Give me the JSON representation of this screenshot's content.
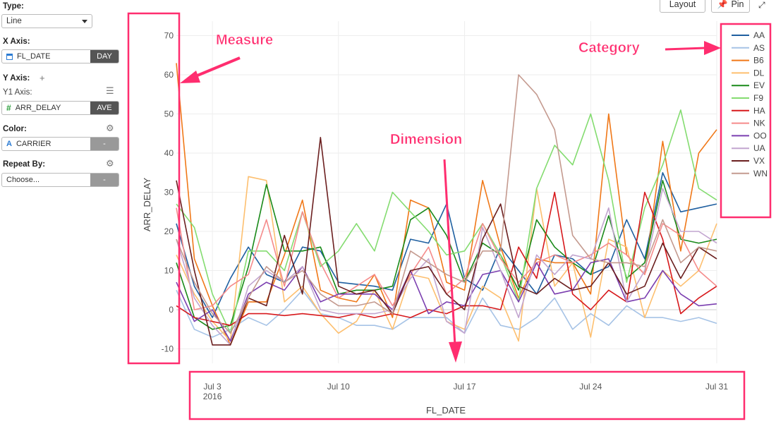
{
  "panel": {
    "type_label": "Type:",
    "type_value": "Line",
    "xaxis_label": "X Axis:",
    "xaxis_field": "FL_DATE",
    "xaxis_agg": "DAY",
    "yaxis_label": "Y Axis:",
    "y1_label": "Y1 Axis:",
    "yaxis_field": "ARR_DELAY",
    "yaxis_agg": "AVE",
    "color_label": "Color:",
    "color_field": "CARRIER",
    "color_agg": "-",
    "repeat_label": "Repeat By:",
    "repeat_placeholder": "Choose...",
    "repeat_agg": "-",
    "icons": [
      "calendar-icon",
      "hash-icon",
      "text-type-icon",
      "plus-icon",
      "menu-icon",
      "gear-icon",
      "caret-down-icon"
    ]
  },
  "toolbar": {
    "layout_label": "Layout",
    "pin_label": "Pin",
    "icons": [
      "pin-icon",
      "expand-icon"
    ]
  },
  "annotations": {
    "measure": "Measure",
    "dimension": "Dimension",
    "category": "Category",
    "color": "#ff2d6f"
  },
  "chart_data": {
    "type": "line",
    "xlabel": "FL_DATE",
    "ylabel": "ARR_DELAY",
    "ylim": [
      -15,
      75
    ],
    "yticks": [
      -10,
      0,
      10,
      20,
      30,
      40,
      50,
      60,
      70
    ],
    "x_tick_labels": [
      {
        "day": 3,
        "label": "Jul 3",
        "sub": "2016"
      },
      {
        "day": 10,
        "label": "Jul 10",
        "sub": ""
      },
      {
        "day": 17,
        "label": "Jul 17",
        "sub": ""
      },
      {
        "day": 24,
        "label": "Jul 24",
        "sub": ""
      },
      {
        "day": 31,
        "label": "Jul 31",
        "sub": ""
      }
    ],
    "x": [
      "2016-07-01",
      "2016-07-02",
      "2016-07-03",
      "2016-07-04",
      "2016-07-05",
      "2016-07-06",
      "2016-07-07",
      "2016-07-08",
      "2016-07-09",
      "2016-07-10",
      "2016-07-11",
      "2016-07-12",
      "2016-07-13",
      "2016-07-14",
      "2016-07-15",
      "2016-07-16",
      "2016-07-17",
      "2016-07-18",
      "2016-07-19",
      "2016-07-20",
      "2016-07-21",
      "2016-07-22",
      "2016-07-23",
      "2016-07-24",
      "2016-07-25",
      "2016-07-26",
      "2016-07-27",
      "2016-07-28",
      "2016-07-29",
      "2016-07-30",
      "2016-07-31"
    ],
    "legend_position": "top-right",
    "grid": true,
    "series": [
      {
        "name": "AA",
        "color": "#1f5fa0",
        "values": [
          22,
          6,
          -2,
          8,
          16,
          9,
          7,
          16,
          15,
          7,
          6.5,
          6,
          5,
          18,
          17,
          27,
          8,
          5,
          16,
          10,
          4,
          14,
          13,
          9,
          11,
          23,
          13,
          35,
          25,
          26,
          27
        ]
      },
      {
        "name": "AS",
        "color": "#a6c3e6",
        "values": [
          5,
          -5,
          -7,
          -5,
          -2,
          -4,
          0,
          5,
          -1,
          -2,
          -4,
          -4,
          -5,
          -2,
          -2,
          -2,
          -6,
          3,
          -4,
          -5,
          -2,
          3,
          -5,
          -1,
          -4,
          1,
          -2,
          -2,
          -3,
          -2,
          -3.5
        ]
      },
      {
        "name": "B6",
        "color": "#f07818",
        "values": [
          63,
          13,
          1,
          -9,
          2,
          2,
          14,
          28,
          5,
          3,
          2,
          9,
          -2,
          28,
          26,
          7,
          5,
          33,
          16,
          3,
          13,
          12,
          12,
          4,
          50,
          14,
          9,
          43,
          15,
          40,
          46
        ]
      },
      {
        "name": "DL",
        "color": "#fdbf6f",
        "values": [
          14,
          4,
          -3,
          -8,
          34,
          33,
          2,
          6,
          -1,
          -6,
          -3,
          5,
          -5,
          9,
          8,
          -3,
          -5,
          6,
          3,
          -8,
          31,
          6,
          12,
          -7,
          18,
          16,
          -2,
          10,
          6,
          10,
          22
        ]
      },
      {
        "name": "EV",
        "color": "#1a8a1a",
        "values": [
          12,
          -2,
          -5,
          -4,
          11,
          32,
          15,
          15,
          16,
          4,
          5,
          5,
          6,
          23,
          26,
          19,
          7,
          17,
          14,
          5,
          23,
          16,
          12,
          9,
          24,
          8,
          12,
          33,
          18,
          17,
          18
        ]
      },
      {
        "name": "F9",
        "color": "#84dc70",
        "values": [
          27,
          21,
          4,
          -6,
          15,
          15,
          10,
          25,
          11,
          15,
          22,
          15,
          30,
          25,
          20,
          14,
          15,
          22,
          14,
          2,
          31,
          42,
          37,
          50,
          33,
          7,
          26,
          37,
          51,
          31,
          28
        ]
      },
      {
        "name": "HA",
        "color": "#d7191c",
        "values": [
          1,
          -2,
          -3,
          -4,
          -1,
          -1,
          -1.5,
          -1,
          -1.5,
          -2,
          -1,
          -2,
          -1,
          -2,
          0,
          -1,
          1,
          1,
          0,
          16,
          8,
          30,
          4,
          0,
          5,
          2,
          30,
          18,
          -1,
          3,
          6
        ]
      },
      {
        "name": "NK",
        "color": "#f58b8b",
        "values": [
          26,
          0,
          1,
          6,
          9,
          23,
          6,
          25,
          12,
          3,
          6,
          9,
          1,
          9,
          16,
          4,
          8,
          22,
          13,
          7,
          12,
          14,
          12,
          14,
          17,
          14,
          9,
          22,
          19,
          10,
          6
        ]
      },
      {
        "name": "OO",
        "color": "#7b3fb0",
        "values": [
          7,
          -3,
          0,
          -8,
          4,
          7,
          5,
          11,
          2,
          4,
          4,
          4,
          0,
          10,
          -1,
          2,
          1,
          9,
          10,
          2,
          12,
          4,
          5,
          12,
          13,
          2,
          3,
          10,
          4,
          1,
          1.5
        ]
      },
      {
        "name": "UA",
        "color": "#c2a5cf",
        "values": [
          18,
          3,
          -4,
          -9,
          6,
          10,
          7,
          11,
          0,
          -1,
          -1,
          -1,
          0,
          8,
          13,
          -3,
          -6,
          21,
          10,
          -2,
          14,
          9,
          14,
          13,
          26,
          2,
          10,
          31,
          20,
          20,
          17
        ]
      },
      {
        "name": "VX",
        "color": "#6b1f1f",
        "values": [
          33,
          10,
          -9,
          -9,
          3,
          1,
          19,
          4,
          44,
          6,
          4,
          5,
          -1,
          10,
          11,
          4,
          0,
          18,
          27,
          6,
          4,
          8,
          5,
          6,
          12,
          4,
          6,
          17,
          8,
          16,
          13
        ]
      },
      {
        "name": "WN",
        "color": "#c49a8f",
        "values": [
          18,
          7,
          -1,
          -6,
          3,
          11,
          7,
          10,
          4,
          1,
          1,
          2,
          -1,
          15,
          12,
          9,
          7,
          15,
          15,
          60,
          55,
          46,
          19,
          13,
          12,
          12,
          11,
          23,
          12,
          16,
          15
        ]
      }
    ]
  }
}
